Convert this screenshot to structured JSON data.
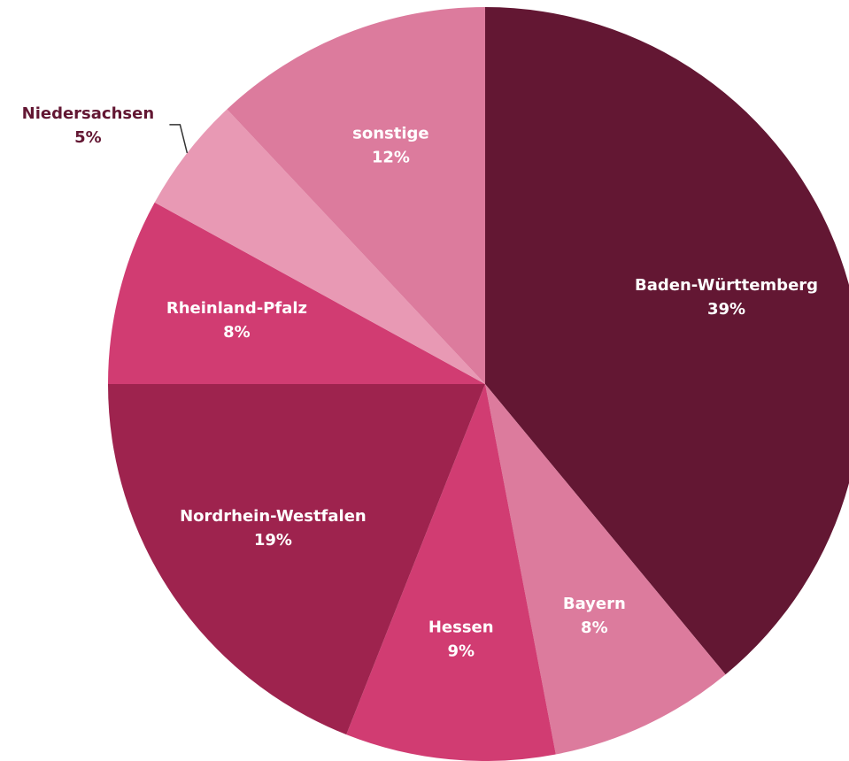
{
  "chart_data": {
    "type": "pie",
    "categories": [
      "Baden-Württemberg",
      "Bayern",
      "Hessen",
      "Nordrhein-Westfalen",
      "Rheinland-Pfalz",
      "Niedersachsen",
      "sonstige"
    ],
    "values": [
      39,
      8,
      9,
      19,
      8,
      5,
      12
    ],
    "value_labels": [
      "39%",
      "8%",
      "9%",
      "19%",
      "8%",
      "5%",
      "12%"
    ],
    "colors": [
      "#631733",
      "#dc7b9d",
      "#d13c72",
      "#9e234e",
      "#d13c72",
      "#e899b4",
      "#dc7b9d"
    ]
  }
}
